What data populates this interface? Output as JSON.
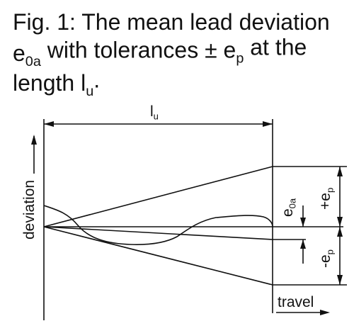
{
  "title": {
    "line1": "Fig. 1: The mean lead deviation",
    "line2": [
      "e",
      "0a",
      " with tolerances ± e",
      "p",
      " at the"
    ],
    "line3": [
      "length l",
      "u",
      "."
    ]
  },
  "labels": {
    "length": [
      "l",
      "u"
    ],
    "deviation": "deviation",
    "mean": [
      "e",
      "0a"
    ],
    "plus_tolerance": [
      "+e",
      "p"
    ],
    "minus_tolerance": [
      "-e",
      "p"
    ],
    "travel": "travel"
  }
}
